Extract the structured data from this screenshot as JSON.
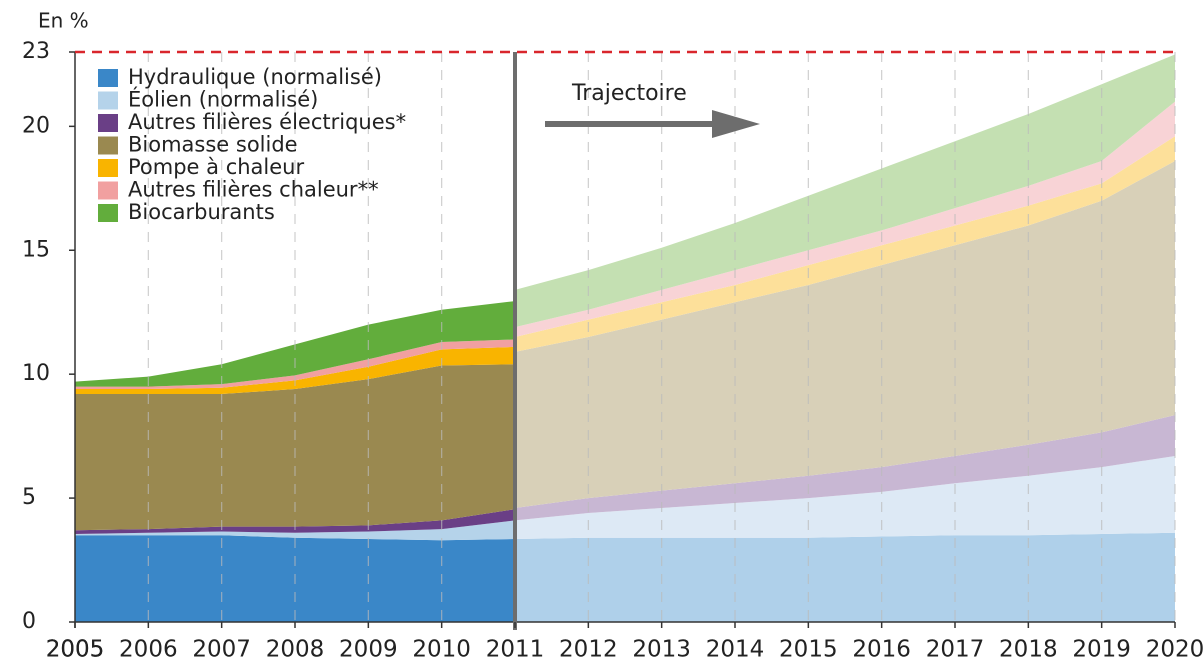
{
  "chart_data": [
    {
      "type": "area",
      "y_label": "En %",
      "x": [
        2005,
        2006,
        2007,
        2008,
        2009,
        2010,
        2011
      ],
      "xlim": [
        2005,
        2020
      ],
      "ylim": [
        0,
        23
      ],
      "yticks": [
        0,
        5,
        10,
        15,
        20,
        23
      ],
      "reference_line": 23,
      "reference_color": "#d9262c",
      "series": [
        {
          "name": "Hydraulique (normalisé)",
          "color": "#3a87c8",
          "values": [
            3.5,
            3.5,
            3.5,
            3.4,
            3.35,
            3.3,
            3.35
          ]
        },
        {
          "name": "Éolien (normalisé)",
          "color": "#b5d3ea",
          "values": [
            0.05,
            0.1,
            0.15,
            0.2,
            0.3,
            0.45,
            0.75
          ]
        },
        {
          "name": "Autres filières électriques*",
          "color": "#6a3f86",
          "values": [
            0.15,
            0.15,
            0.2,
            0.25,
            0.25,
            0.35,
            0.45
          ]
        },
        {
          "name": "Biomasse solide",
          "color": "#9a8950",
          "values": [
            5.5,
            5.45,
            5.35,
            5.55,
            5.9,
            6.25,
            5.85
          ]
        },
        {
          "name": "Pompe à chaleur",
          "color": "#f9b400",
          "values": [
            0.2,
            0.2,
            0.25,
            0.35,
            0.5,
            0.65,
            0.7
          ]
        },
        {
          "name": "Autres filières chaleur**",
          "color": "#f1a0a0",
          "values": [
            0.1,
            0.1,
            0.15,
            0.2,
            0.3,
            0.3,
            0.3
          ]
        },
        {
          "name": "Biocarburants",
          "color": "#62ad3c",
          "values": [
            0.2,
            0.4,
            0.8,
            1.25,
            1.4,
            1.3,
            1.55
          ]
        }
      ]
    },
    {
      "type": "area",
      "annotation": "Trajectoire",
      "x": [
        2011,
        2012,
        2013,
        2014,
        2015,
        2016,
        2017,
        2018,
        2019,
        2020
      ],
      "xlim": [
        2005,
        2020
      ],
      "series": [
        {
          "color": "#afd0ea",
          "values": [
            3.35,
            3.4,
            3.4,
            3.4,
            3.4,
            3.45,
            3.5,
            3.5,
            3.55,
            3.6
          ]
        },
        {
          "color": "#dde9f5",
          "values": [
            0.75,
            1.0,
            1.2,
            1.4,
            1.6,
            1.8,
            2.1,
            2.4,
            2.7,
            3.1
          ]
        },
        {
          "color": "#c8b7d3",
          "values": [
            0.5,
            0.6,
            0.7,
            0.8,
            0.9,
            1.0,
            1.1,
            1.25,
            1.4,
            1.65
          ]
        },
        {
          "color": "#d8d0b8",
          "values": [
            6.3,
            6.5,
            6.9,
            7.3,
            7.7,
            8.15,
            8.5,
            8.85,
            9.35,
            10.25
          ]
        },
        {
          "color": "#fde09a",
          "values": [
            0.6,
            0.7,
            0.7,
            0.7,
            0.8,
            0.8,
            0.8,
            0.8,
            0.7,
            1.0
          ]
        },
        {
          "color": "#f8d3d6",
          "values": [
            0.4,
            0.4,
            0.5,
            0.6,
            0.6,
            0.6,
            0.7,
            0.8,
            0.9,
            1.4
          ]
        },
        {
          "color": "#c4e0b2",
          "values": [
            1.5,
            1.6,
            1.7,
            1.9,
            2.2,
            2.5,
            2.7,
            2.9,
            3.1,
            1.9
          ]
        }
      ]
    }
  ]
}
